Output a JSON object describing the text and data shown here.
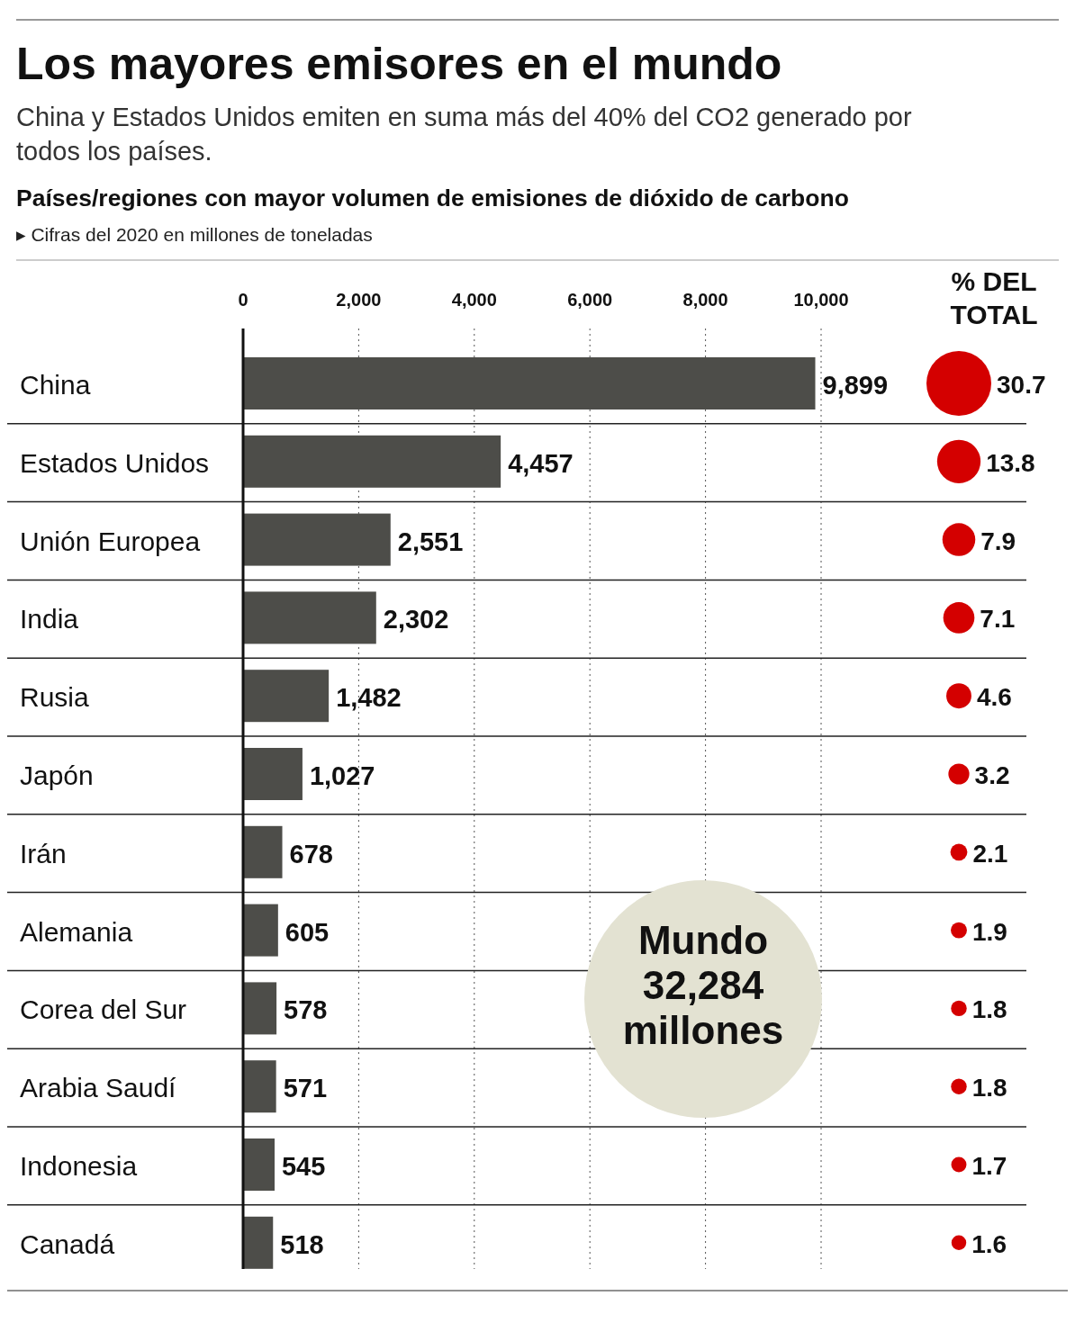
{
  "chart_data": [
    {
      "type": "bar",
      "orientation": "horizontal",
      "title": "Los mayores emisores en el mundo",
      "subtitle": "China y Estados Unidos emiten en suma más del 40% del CO2 generado por todos los países.",
      "xlabel": "▸ Cifras del 2020 en millones de toneladas",
      "categories": [
        "China",
        "Estados Unidos",
        "Unión Europea",
        "India",
        "Rusia",
        "Japón",
        "Irán",
        "Alemania",
        "Corea del Sur",
        "Arabia Saudí",
        "Indonesia",
        "Canadá"
      ],
      "values": [
        9899,
        4457,
        2551,
        2302,
        1482,
        1027,
        678,
        605,
        578,
        571,
        545,
        518
      ],
      "value_labels": [
        "9,899",
        "4,457",
        "2,551",
        "2,302",
        "1,482",
        "1,027",
        "678",
        "605",
        "578",
        "571",
        "545",
        "518"
      ],
      "color": "#4d4d49",
      "grid": "x",
      "xlim": [
        0,
        10000
      ],
      "xticks": [
        0,
        {
          "value": 2000,
          "label": "2,000"
        },
        {
          "value": 4000,
          "label": "4,000"
        },
        {
          "value": 6000,
          "label": "6,000"
        },
        {
          "value": 8000,
          "label": "8,000"
        },
        {
          "value": 10000,
          "label": "10,000"
        }
      ],
      "annotations": [
        "Países/regiones con mayor volumen de emisiones de dióxido de carbono",
        "Mundo\n32,284\nmillones"
      ]
    },
    {
      "type": "other",
      "title": "% DEL\nTOTAL",
      "categories": [
        null,
        null,
        null,
        null,
        null,
        null,
        null,
        null,
        null,
        null,
        null,
        null
      ],
      "values": [
        30.7,
        13.8,
        7.9,
        7.1,
        4.6,
        3.2,
        2.1,
        1.9,
        1.8,
        1.8,
        1.7,
        1.6
      ],
      "color": "#d40000",
      "data_labels": true
    }
  ]
}
